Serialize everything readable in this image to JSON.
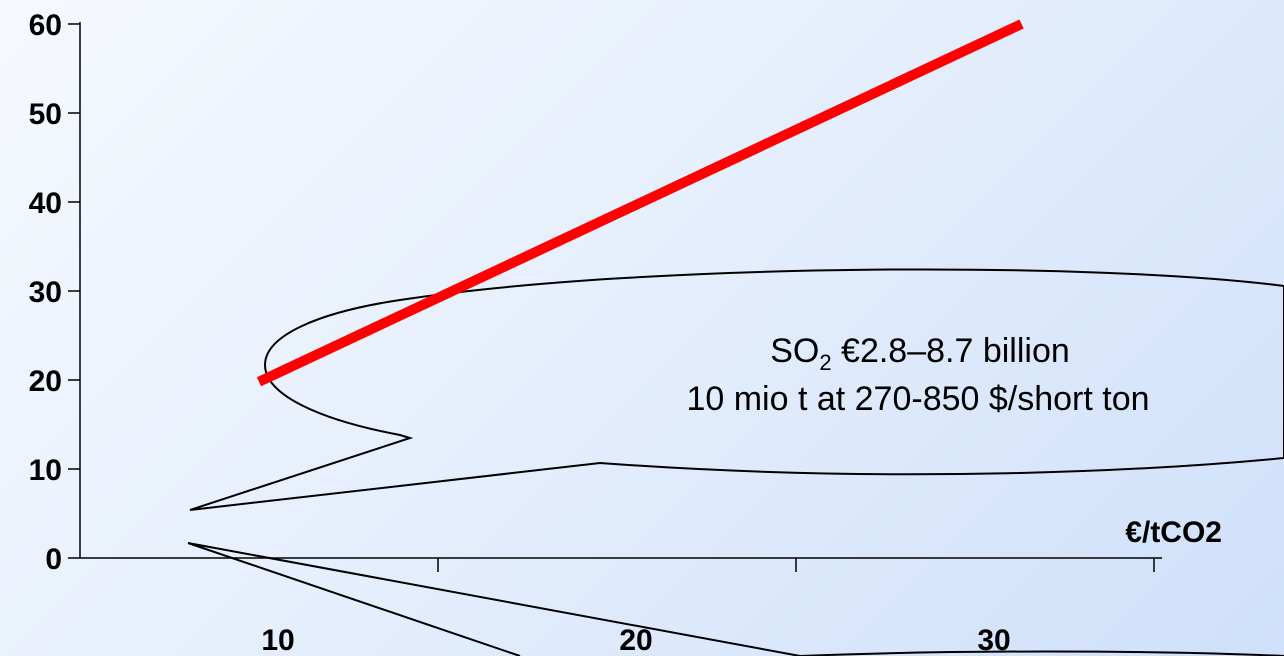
{
  "chart_data": {
    "type": "line",
    "title": "",
    "xlabel": "€/tCO2",
    "ylabel": "",
    "xlim": [
      0,
      30
    ],
    "ylim": [
      0,
      60
    ],
    "x_ticks": [
      10,
      20,
      30
    ],
    "y_ticks": [
      0,
      10,
      20,
      30,
      40,
      50,
      60
    ],
    "grid": false,
    "series": [
      {
        "x": [
          5,
          26.3
        ],
        "y": [
          19.8,
          60
        ],
        "color": "#ff0000"
      }
    ]
  },
  "callout": {
    "line1_prefix": "SO",
    "line1_sub": "2",
    "line1_suffix": " €2.8–8.7 billion",
    "line2": "10 mio t at 270-850 $/short ton"
  },
  "colors": {
    "line": "#ff0000",
    "background_start": "#f6f9fe",
    "background_end": "#cfe0fa"
  }
}
